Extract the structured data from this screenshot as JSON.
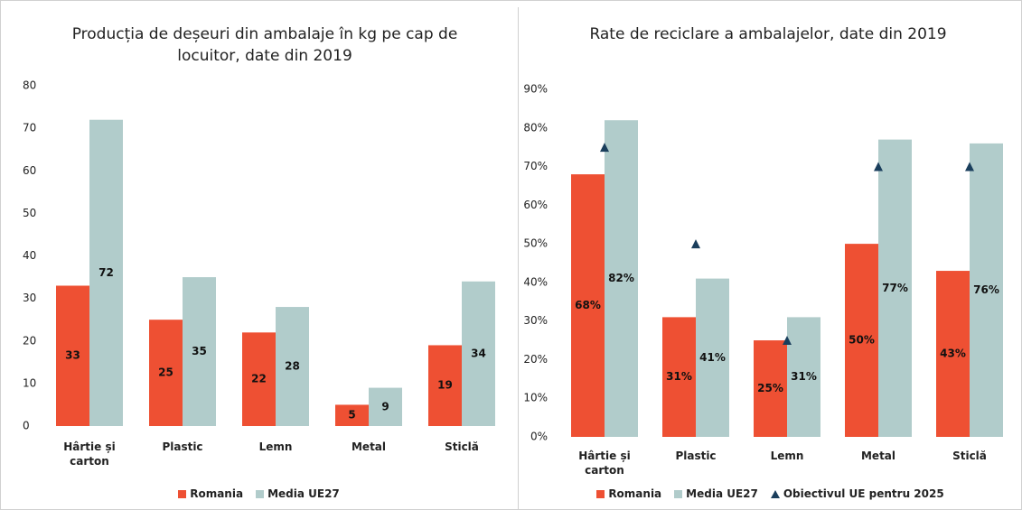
{
  "chart_data": [
    {
      "type": "bar",
      "title": "Producția de deșeuri din ambalaje în kg pe cap de locuitor, date din 2019",
      "categories": [
        "Hârtie și carton",
        "Plastic",
        "Lemn",
        "Metal",
        "Sticlă"
      ],
      "series": [
        {
          "name": "Romania",
          "color": "#ee5033",
          "values": [
            33,
            25,
            22,
            5,
            19
          ]
        },
        {
          "name": "Media UE27",
          "color": "#b1cccb",
          "values": [
            72,
            35,
            28,
            9,
            34
          ]
        }
      ],
      "ylim": [
        0,
        80
      ],
      "yticks": [
        0,
        10,
        20,
        30,
        40,
        50,
        60,
        70,
        80
      ],
      "grid": false,
      "legend": "bottom"
    },
    {
      "type": "bar",
      "title": "Rate de reciclare a ambalajelor, date din 2019",
      "categories": [
        "Hârtie și carton",
        "Plastic",
        "Lemn",
        "Metal",
        "Sticlă"
      ],
      "series": [
        {
          "name": "Romania",
          "color": "#ee5033",
          "values": [
            68,
            31,
            25,
            50,
            43
          ],
          "value_labels": [
            "68%",
            "31%",
            "25%",
            "50%",
            "43%"
          ]
        },
        {
          "name": "Media UE27",
          "color": "#b1cccb",
          "values": [
            82,
            41,
            31,
            77,
            76
          ],
          "value_labels": [
            "82%",
            "41%",
            "31%",
            "77%",
            "76%"
          ]
        },
        {
          "name": "Obiectivul UE pentru 2025",
          "color": "#1a3e5c",
          "marker": "triangle",
          "values": [
            75,
            50,
            25,
            70,
            70
          ]
        }
      ],
      "ylim": [
        0,
        90
      ],
      "yticks": [
        {
          "value": 0,
          "label": "0%"
        },
        {
          "value": 10,
          "label": "10%"
        },
        {
          "value": 20,
          "label": "20%"
        },
        {
          "value": 30,
          "label": "30%"
        },
        {
          "value": 40,
          "label": "40%"
        },
        {
          "value": 50,
          "label": "50%"
        },
        {
          "value": 60,
          "label": "60%"
        },
        {
          "value": 70,
          "label": "70%"
        },
        {
          "value": 80,
          "label": "80%"
        },
        {
          "value": 90,
          "label": "90%"
        }
      ],
      "grid": false,
      "legend": "bottom"
    }
  ]
}
